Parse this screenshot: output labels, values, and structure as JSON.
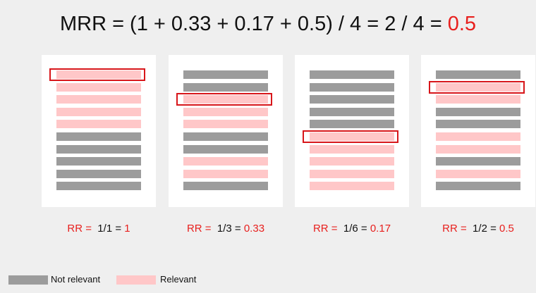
{
  "title": {
    "formula": "MRR = (1 + 0.33 + 0.17 + 0.5) / 4 = 2 / 4 = ",
    "result": "0.5"
  },
  "colors": {
    "relevant": "#ffc7c8",
    "not_relevant": "#9c9c9c",
    "highlight": "#d8161a",
    "accent_text": "#e8201e"
  },
  "queries": [
    {
      "results": [
        "relevant",
        "relevant",
        "relevant",
        "relevant",
        "relevant",
        "non",
        "non",
        "non",
        "non",
        "non"
      ],
      "first_relevant_rank": 1,
      "rr_label": "RR = ",
      "rr_fraction": " 1/1 = ",
      "rr_value": "1"
    },
    {
      "results": [
        "non",
        "non",
        "relevant",
        "relevant",
        "relevant",
        "non",
        "non",
        "relevant",
        "relevant",
        "non"
      ],
      "first_relevant_rank": 3,
      "rr_label": "RR = ",
      "rr_fraction": " 1/3 = ",
      "rr_value": "0.33"
    },
    {
      "results": [
        "non",
        "non",
        "non",
        "non",
        "non",
        "relevant",
        "relevant",
        "relevant",
        "relevant",
        "relevant"
      ],
      "first_relevant_rank": 6,
      "rr_label": "RR = ",
      "rr_fraction": " 1/6 = ",
      "rr_value": "0.17"
    },
    {
      "results": [
        "non",
        "relevant",
        "relevant",
        "non",
        "non",
        "relevant",
        "relevant",
        "non",
        "relevant",
        "non"
      ],
      "first_relevant_rank": 2,
      "rr_label": "RR = ",
      "rr_fraction": " 1/2 = ",
      "rr_value": "0.5"
    }
  ],
  "legend": {
    "not_relevant": "Not relevant",
    "relevant": "Relevant"
  }
}
